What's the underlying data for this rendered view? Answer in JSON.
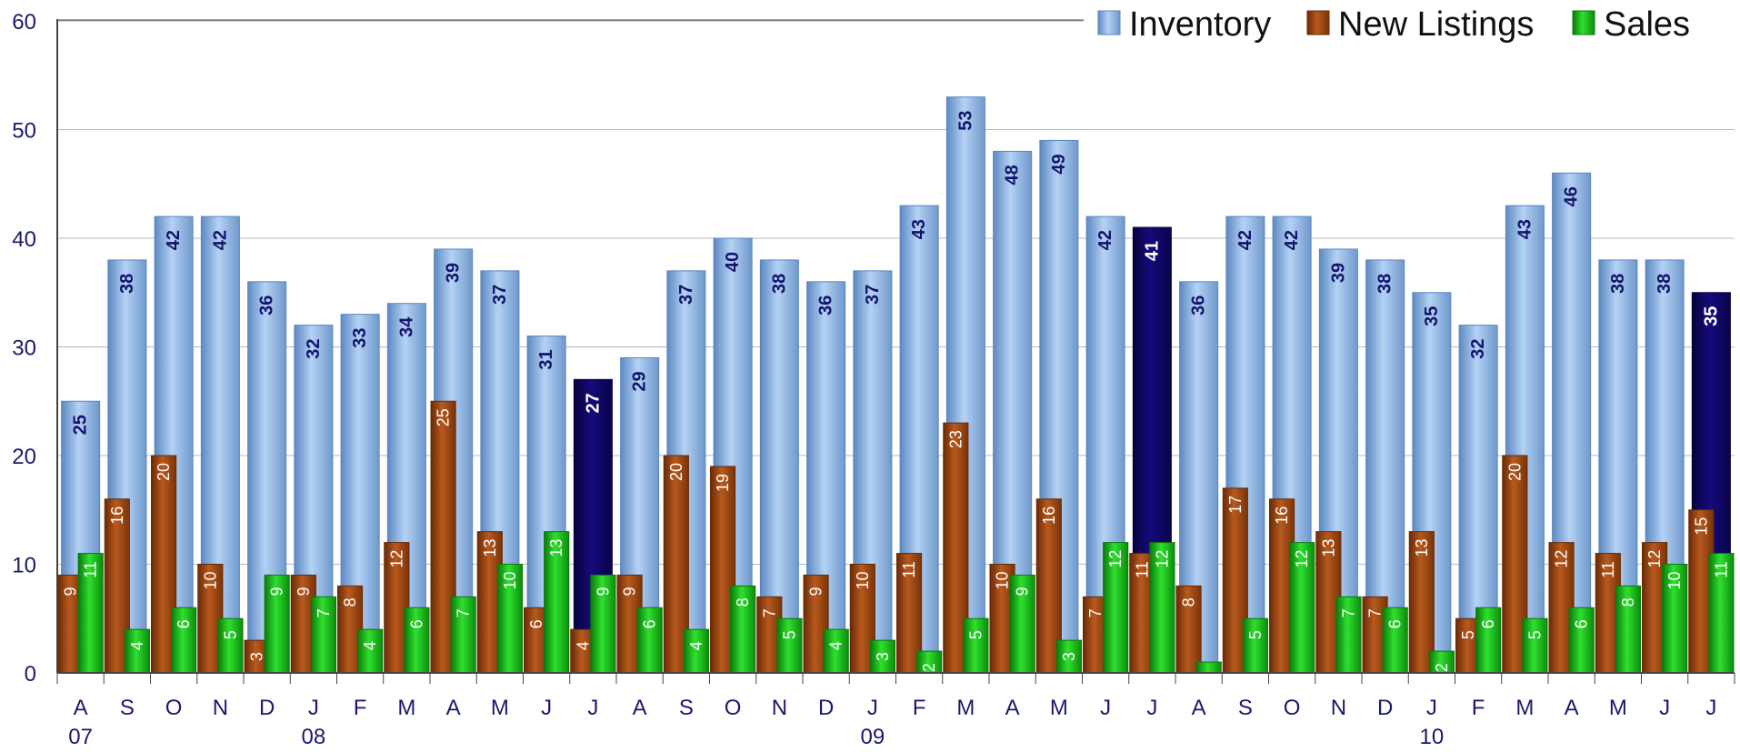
{
  "chart_data": {
    "type": "bar",
    "categories": [
      "A",
      "S",
      "O",
      "N",
      "D",
      "J",
      "F",
      "M",
      "A",
      "M",
      "J",
      "J",
      "A",
      "S",
      "O",
      "N",
      "D",
      "J",
      "F",
      "M",
      "A",
      "M",
      "J",
      "J",
      "A",
      "S",
      "O",
      "N",
      "D",
      "J",
      "F",
      "M",
      "A",
      "M",
      "J",
      "J"
    ],
    "year_labels": [
      {
        "index": 0,
        "label": "07"
      },
      {
        "index": 5,
        "label": "08"
      },
      {
        "index": 17,
        "label": "09"
      },
      {
        "index": 29,
        "label": "10"
      }
    ],
    "ylim": [
      0,
      60
    ],
    "yticks": [
      "0",
      "10",
      "20",
      "30",
      "40",
      "50",
      "60"
    ],
    "grid": true,
    "legend_position": "top-right",
    "highlight_inventory_indices": [
      11,
      23,
      35
    ],
    "colors": {
      "inventory": "#8fb7e6",
      "inventory_dark": "#5b86bf",
      "inventory_highlight": "#0d0660",
      "new_listings": "#a04b14",
      "new_listings_dark": "#6a2a06",
      "sales": "#19c119",
      "sales_dark": "#0a7a0a",
      "axis": "#1a1a6e",
      "grid": "#b8b8b8"
    },
    "series": [
      {
        "name": "Inventory",
        "values": [
          25,
          38,
          42,
          42,
          36,
          32,
          33,
          34,
          39,
          37,
          31,
          27,
          29,
          37,
          40,
          38,
          36,
          37,
          43,
          53,
          48,
          49,
          42,
          41,
          36,
          42,
          42,
          39,
          38,
          35,
          32,
          43,
          46,
          38,
          38,
          35
        ]
      },
      {
        "name": "New Listings",
        "values": [
          9,
          16,
          20,
          10,
          3,
          9,
          8,
          12,
          25,
          13,
          6,
          4,
          9,
          20,
          19,
          7,
          9,
          10,
          11,
          23,
          10,
          16,
          7,
          11,
          8,
          17,
          16,
          13,
          7,
          13,
          5,
          20,
          12,
          11,
          12,
          15
        ]
      },
      {
        "name": "Sales",
        "values": [
          11,
          4,
          6,
          5,
          9,
          7,
          4,
          6,
          7,
          10,
          13,
          9,
          6,
          4,
          8,
          5,
          4,
          3,
          2,
          5,
          9,
          3,
          12,
          12,
          1,
          5,
          12,
          7,
          6,
          2,
          6,
          5,
          6,
          8,
          10,
          11
        ]
      }
    ]
  }
}
